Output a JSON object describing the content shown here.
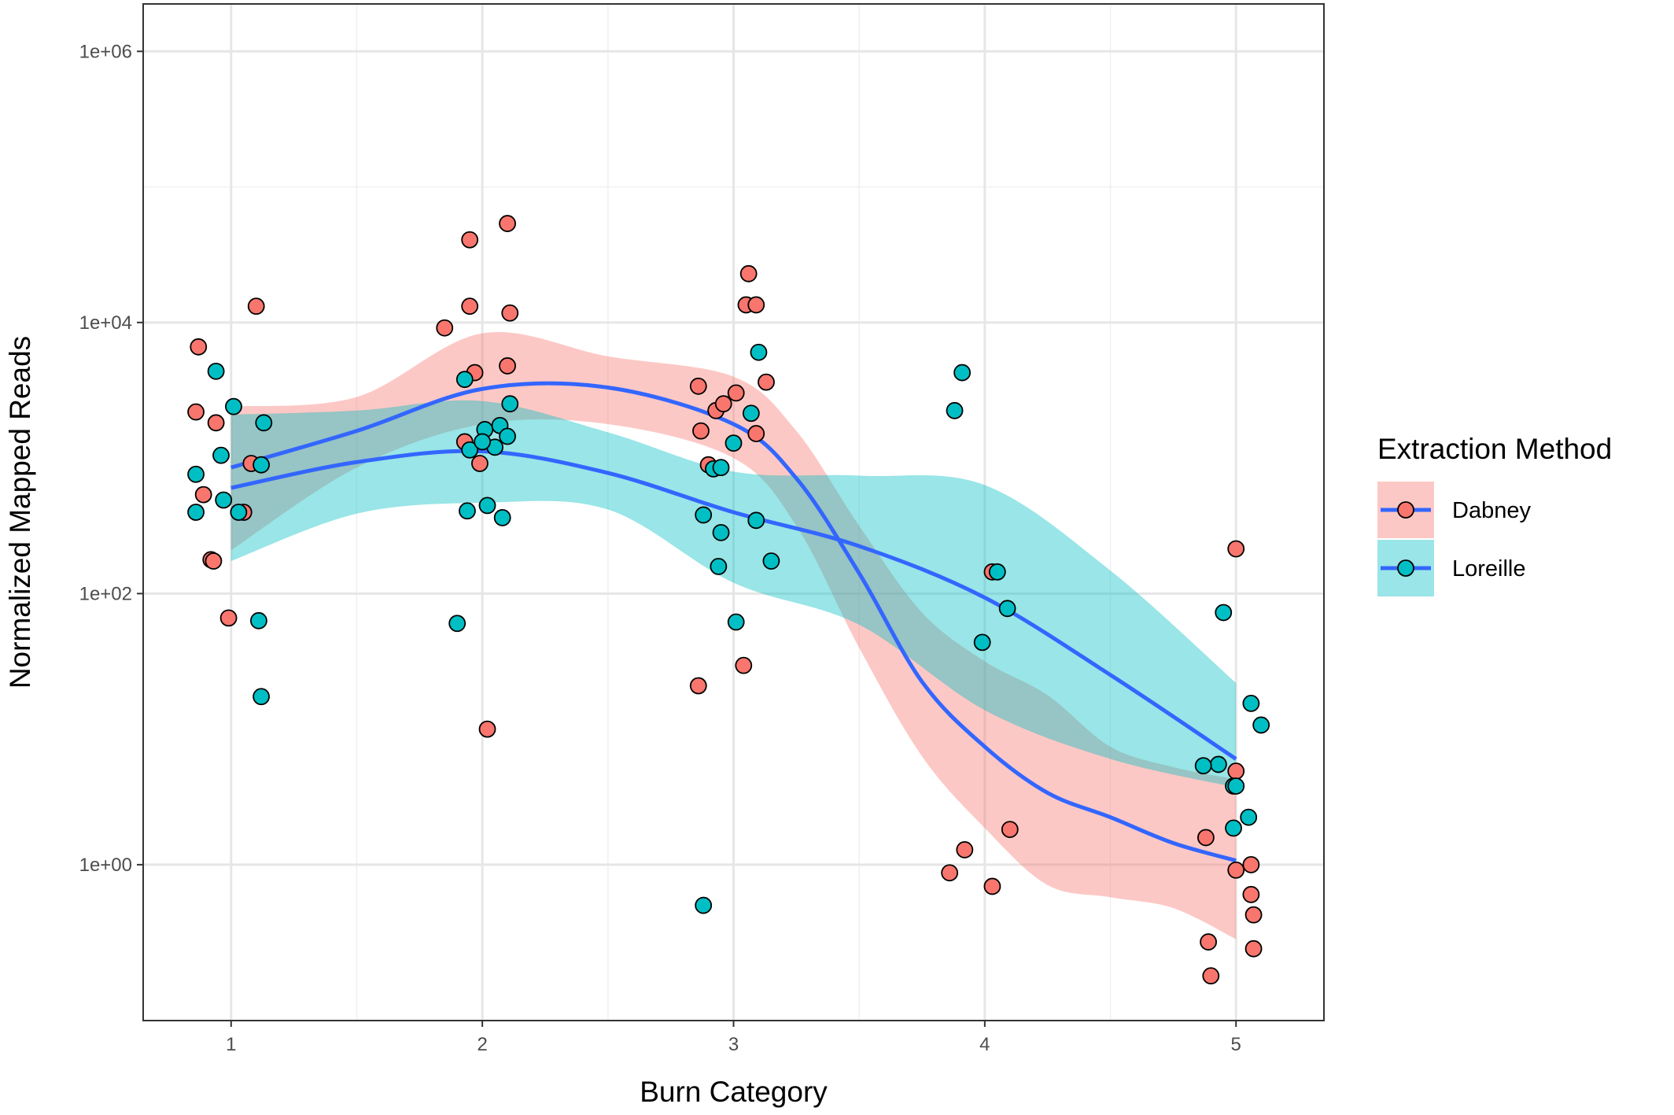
{
  "chart_data": {
    "type": "scatter",
    "xlabel": "Burn Category",
    "ylabel": "Normalized Mapped Reads",
    "xlim": [
      0.65,
      5.35
    ],
    "ylim_log10": [
      -1.15,
      6.35
    ],
    "y_scale": "log10",
    "x_ticks": [
      1,
      2,
      3,
      4,
      5
    ],
    "x_tick_labels": [
      "1",
      "2",
      "3",
      "4",
      "5"
    ],
    "y_ticks_log10": [
      0,
      2,
      4,
      6
    ],
    "y_tick_labels": [
      "1e+00",
      "1e+02",
      "1e+04",
      "1e+06"
    ],
    "grid": true,
    "legend": {
      "title": "Extraction Method",
      "position": "right",
      "entries": [
        "Dabney",
        "Loreille"
      ]
    },
    "colors": {
      "Dabney": "#F8766D",
      "Loreille": "#00BFC4",
      "ribbon_Dabney": "#F8766D",
      "ribbon_Loreille": "#00BFC4",
      "smooth_line": "#3366FF"
    },
    "series": [
      {
        "name": "Dabney",
        "points": [
          [
            0.87,
            3.82
          ],
          [
            0.86,
            3.34
          ],
          [
            0.89,
            2.73
          ],
          [
            0.94,
            3.26
          ],
          [
            0.92,
            2.25
          ],
          [
            0.93,
            2.24
          ],
          [
            0.99,
            1.82
          ],
          [
            1.1,
            4.12
          ],
          [
            1.08,
            2.96
          ],
          [
            1.05,
            2.6
          ],
          [
            1.85,
            3.96
          ],
          [
            1.95,
            4.61
          ],
          [
            1.97,
            3.63
          ],
          [
            1.95,
            4.12
          ],
          [
            2.1,
            4.73
          ],
          [
            2.11,
            4.07
          ],
          [
            2.1,
            3.68
          ],
          [
            1.93,
            3.12
          ],
          [
            1.99,
            2.96
          ],
          [
            2.02,
            1.0
          ],
          [
            2.86,
            3.53
          ],
          [
            2.87,
            3.2
          ],
          [
            2.9,
            2.95
          ],
          [
            2.93,
            3.35
          ],
          [
            2.96,
            3.4
          ],
          [
            3.01,
            3.48
          ],
          [
            3.06,
            4.36
          ],
          [
            3.05,
            4.13
          ],
          [
            3.09,
            4.13
          ],
          [
            3.13,
            3.56
          ],
          [
            3.09,
            3.18
          ],
          [
            3.04,
            1.47
          ],
          [
            2.86,
            1.32
          ],
          [
            4.03,
            2.16
          ],
          [
            3.86,
            -0.06
          ],
          [
            3.92,
            0.11
          ],
          [
            4.03,
            -0.16
          ],
          [
            4.1,
            0.26
          ],
          [
            5.0,
            2.33
          ],
          [
            5.0,
            0.69
          ],
          [
            5.0,
            -0.04
          ],
          [
            5.06,
            0.0
          ],
          [
            5.06,
            -0.22
          ],
          [
            5.07,
            -0.37
          ],
          [
            4.89,
            -0.57
          ],
          [
            5.07,
            -0.62
          ],
          [
            4.9,
            -0.82
          ],
          [
            4.88,
            0.2
          ]
        ]
      },
      {
        "name": "Loreille",
        "points": [
          [
            0.94,
            3.64
          ],
          [
            1.01,
            3.38
          ],
          [
            0.96,
            3.02
          ],
          [
            0.86,
            2.88
          ],
          [
            0.97,
            2.69
          ],
          [
            1.13,
            3.26
          ],
          [
            1.12,
            2.95
          ],
          [
            0.86,
            2.6
          ],
          [
            1.03,
            2.6
          ],
          [
            1.11,
            1.8
          ],
          [
            1.12,
            1.24
          ],
          [
            1.9,
            1.78
          ],
          [
            1.93,
            3.58
          ],
          [
            2.01,
            3.21
          ],
          [
            2.07,
            3.24
          ],
          [
            2.11,
            3.4
          ],
          [
            2.1,
            3.16
          ],
          [
            2.05,
            3.08
          ],
          [
            1.95,
            3.06
          ],
          [
            2.0,
            3.12
          ],
          [
            1.94,
            2.61
          ],
          [
            2.02,
            2.65
          ],
          [
            2.08,
            2.56
          ],
          [
            3.1,
            3.78
          ],
          [
            3.07,
            3.33
          ],
          [
            3.0,
            3.11
          ],
          [
            2.92,
            2.92
          ],
          [
            2.95,
            2.93
          ],
          [
            2.88,
            2.58
          ],
          [
            2.95,
            2.45
          ],
          [
            3.09,
            2.54
          ],
          [
            3.15,
            2.24
          ],
          [
            2.94,
            2.2
          ],
          [
            3.01,
            1.79
          ],
          [
            2.88,
            -0.3
          ],
          [
            3.91,
            3.63
          ],
          [
            3.88,
            3.35
          ],
          [
            4.05,
            2.16
          ],
          [
            4.09,
            1.89
          ],
          [
            3.99,
            1.64
          ],
          [
            4.93,
            0.74
          ],
          [
            4.87,
            0.73
          ],
          [
            4.95,
            1.86
          ],
          [
            5.06,
            1.19
          ],
          [
            5.1,
            1.03
          ],
          [
            4.99,
            0.58
          ],
          [
            5.05,
            0.35
          ],
          [
            4.99,
            0.27
          ],
          [
            5.0,
            0.58
          ]
        ]
      }
    ],
    "smooth": [
      {
        "name": "Dabney",
        "x": [
          1.0,
          1.5,
          2.0,
          2.5,
          3.0,
          3.25,
          3.5,
          3.75,
          4.0,
          4.25,
          4.5,
          4.75,
          5.0
        ],
        "y": [
          2.93,
          3.2,
          3.51,
          3.52,
          3.25,
          2.85,
          2.15,
          1.35,
          0.87,
          0.53,
          0.35,
          0.16,
          0.03
        ],
        "ymin": [
          2.32,
          2.93,
          3.25,
          3.25,
          3.0,
          2.5,
          1.6,
          0.8,
          0.27,
          -0.15,
          -0.24,
          -0.32,
          -0.55
        ],
        "ymax": [
          3.38,
          3.45,
          3.92,
          3.75,
          3.6,
          3.2,
          2.5,
          1.86,
          1.5,
          1.25,
          0.87,
          0.72,
          0.63
        ]
      },
      {
        "name": "Loreille",
        "x": [
          1.0,
          1.5,
          2.0,
          2.5,
          3.0,
          3.5,
          4.0,
          4.5,
          5.0
        ],
        "y": [
          2.78,
          2.97,
          3.05,
          2.89,
          2.6,
          2.35,
          1.97,
          1.4,
          0.78
        ],
        "ymin": [
          2.24,
          2.59,
          2.67,
          2.62,
          2.08,
          1.77,
          1.14,
          0.78,
          0.57
        ],
        "ymax": [
          3.32,
          3.35,
          3.42,
          3.19,
          2.9,
          2.87,
          2.8,
          2.17,
          1.34
        ]
      }
    ]
  }
}
